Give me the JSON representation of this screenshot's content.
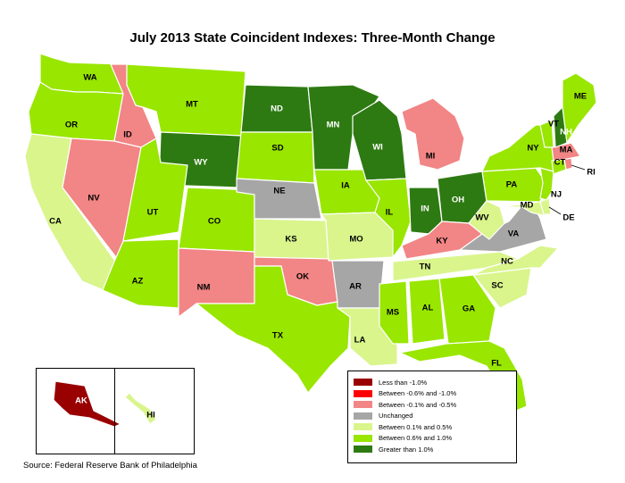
{
  "title": "July 2013 State Coincident Indexes: Three-Month Change",
  "source": "Source: Federal Reserve Bank of Philadelphia",
  "colors": {
    "lt_minus_1": "#990000",
    "minus_06_to_1": "#ff0000",
    "minus_01_to_05": "#f28585",
    "unchanged": "#a6a6a6",
    "plus_01_to_05": "#d9f58c",
    "plus_06_to_1": "#99e600",
    "gt_plus_1": "#2e7a12"
  },
  "legend": [
    {
      "label": "Less than -1.0%",
      "color": "#990000"
    },
    {
      "label": "Between -0.6% and -1.0%",
      "color": "#ff0000"
    },
    {
      "label": "Between -0.1% and -0.5%",
      "color": "#f28585"
    },
    {
      "label": "Unchanged",
      "color": "#a6a6a6"
    },
    {
      "label": "Between 0.1% and 0.5%",
      "color": "#d9f58c"
    },
    {
      "label": "Between 0.6% and 1.0%",
      "color": "#99e600"
    },
    {
      "label": "Greater than 1.0%",
      "color": "#2e7a12"
    }
  ],
  "states": [
    {
      "abbr": "WA",
      "category": "Between 0.6% and 1.0%"
    },
    {
      "abbr": "OR",
      "category": "Between 0.6% and 1.0%"
    },
    {
      "abbr": "CA",
      "category": "Between 0.1% and 0.5%"
    },
    {
      "abbr": "NV",
      "category": "Between -0.1% and -0.5%"
    },
    {
      "abbr": "ID",
      "category": "Between -0.1% and -0.5%"
    },
    {
      "abbr": "MT",
      "category": "Between 0.6% and 1.0%"
    },
    {
      "abbr": "WY",
      "category": "Greater than 1.0%"
    },
    {
      "abbr": "UT",
      "category": "Between 0.6% and 1.0%"
    },
    {
      "abbr": "AZ",
      "category": "Between 0.6% and 1.0%"
    },
    {
      "abbr": "CO",
      "category": "Between 0.6% and 1.0%"
    },
    {
      "abbr": "NM",
      "category": "Between -0.1% and -0.5%"
    },
    {
      "abbr": "ND",
      "category": "Greater than 1.0%"
    },
    {
      "abbr": "SD",
      "category": "Between 0.6% and 1.0%"
    },
    {
      "abbr": "NE",
      "category": "Unchanged"
    },
    {
      "abbr": "KS",
      "category": "Between 0.1% and 0.5%"
    },
    {
      "abbr": "OK",
      "category": "Between -0.1% and -0.5%"
    },
    {
      "abbr": "TX",
      "category": "Between 0.6% and 1.0%"
    },
    {
      "abbr": "MN",
      "category": "Greater than 1.0%"
    },
    {
      "abbr": "IA",
      "category": "Between 0.6% and 1.0%"
    },
    {
      "abbr": "MO",
      "category": "Between 0.1% and 0.5%"
    },
    {
      "abbr": "AR",
      "category": "Unchanged"
    },
    {
      "abbr": "LA",
      "category": "Between 0.1% and 0.5%"
    },
    {
      "abbr": "WI",
      "category": "Greater than 1.0%"
    },
    {
      "abbr": "IL",
      "category": "Between 0.6% and 1.0%"
    },
    {
      "abbr": "MI",
      "category": "Between -0.1% and -0.5%"
    },
    {
      "abbr": "IN",
      "category": "Greater than 1.0%"
    },
    {
      "abbr": "OH",
      "category": "Greater than 1.0%"
    },
    {
      "abbr": "KY",
      "category": "Between -0.1% and -0.5%"
    },
    {
      "abbr": "TN",
      "category": "Between 0.1% and 0.5%"
    },
    {
      "abbr": "MS",
      "category": "Between 0.6% and 1.0%"
    },
    {
      "abbr": "AL",
      "category": "Between 0.6% and 1.0%"
    },
    {
      "abbr": "GA",
      "category": "Between 0.6% and 1.0%"
    },
    {
      "abbr": "FL",
      "category": "Between 0.6% and 1.0%"
    },
    {
      "abbr": "SC",
      "category": "Between 0.1% and 0.5%"
    },
    {
      "abbr": "NC",
      "category": "Between 0.1% and 0.5%"
    },
    {
      "abbr": "VA",
      "category": "Unchanged"
    },
    {
      "abbr": "WV",
      "category": "Between 0.1% and 0.5%"
    },
    {
      "abbr": "MD",
      "category": "Between 0.1% and 0.5%"
    },
    {
      "abbr": "DE",
      "category": "Between 0.1% and 0.5%"
    },
    {
      "abbr": "PA",
      "category": "Between 0.6% and 1.0%"
    },
    {
      "abbr": "NJ",
      "category": "Between 0.6% and 1.0%"
    },
    {
      "abbr": "NY",
      "category": "Between 0.6% and 1.0%"
    },
    {
      "abbr": "CT",
      "category": "Between 0.6% and 1.0%"
    },
    {
      "abbr": "RI",
      "category": "Between -0.1% and -0.5%"
    },
    {
      "abbr": "MA",
      "category": "Between -0.1% and -0.5%"
    },
    {
      "abbr": "VT",
      "category": "Between 0.6% and 1.0%"
    },
    {
      "abbr": "NH",
      "category": "Greater than 1.0%"
    },
    {
      "abbr": "ME",
      "category": "Between 0.6% and 1.0%"
    },
    {
      "abbr": "AK",
      "category": "Less than -1.0%"
    },
    {
      "abbr": "HI",
      "category": "Between 0.1% and 0.5%"
    }
  ]
}
